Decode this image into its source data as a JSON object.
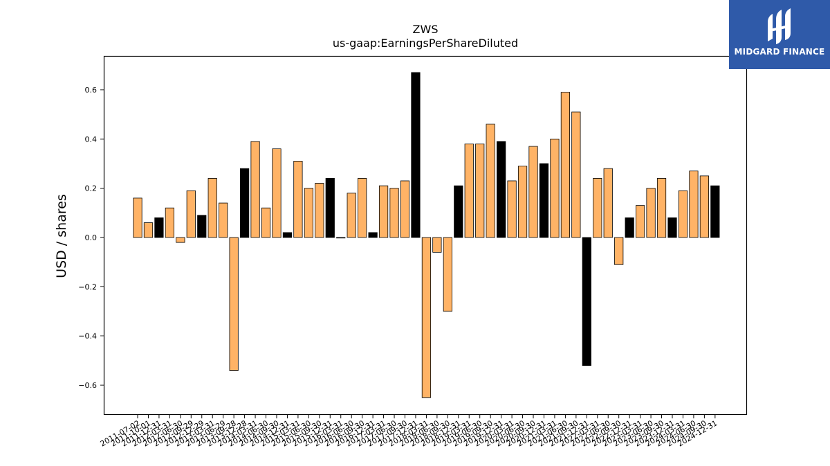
{
  "brand": {
    "name": "MIDGARD FINANCE",
    "logo_icon": "midgard-logo-icon",
    "color": "#2f5aa9"
  },
  "chart_data": {
    "type": "bar",
    "title": "ZWS",
    "subtitle": "us-gaap:EarningsPerShareDiluted",
    "xlabel": "",
    "ylabel": "USD / shares",
    "ylim": [
      -0.72,
      0.73
    ],
    "yticks": [
      -0.6,
      -0.4,
      -0.2,
      0.0,
      0.2,
      0.4,
      0.6
    ],
    "ytick_labels": [
      "−0.6",
      "−0.4",
      "−0.2",
      "0.0",
      "0.2",
      "0.4",
      "0.6"
    ],
    "grid": false,
    "colors": {
      "quarterly": "#ffb366",
      "annual": "#000000",
      "edge": "#000000"
    },
    "categories": [
      "2011-07-02",
      "2011-10-01",
      "2011-12-31",
      "2012-03-31",
      "2012-06-30",
      "2012-09-29",
      "2012-12-29",
      "2013-03-31",
      "2013-06-29",
      "2013-09-28",
      "2013-12-28",
      "2014-03-31",
      "2014-06-30",
      "2014-09-30",
      "2014-12-31",
      "2015-03-31",
      "2015-06-30",
      "2015-09-30",
      "2015-12-31",
      "2016-03-31",
      "2016-06-30",
      "2016-09-30",
      "2016-12-31",
      "2017-03-31",
      "2017-06-30",
      "2017-09-30",
      "2017-12-31",
      "2018-03-31",
      "2018-06-30",
      "2018-09-30",
      "2018-12-31",
      "2019-03-31",
      "2019-06-30",
      "2019-09-30",
      "2019-12-31",
      "2020-03-31",
      "2020-06-30",
      "2020-09-30",
      "2020-12-31",
      "2021-03-31",
      "2021-06-30",
      "2021-09-30",
      "2021-12-31",
      "2022-03-31",
      "2022-06-30",
      "2022-09-30",
      "2022-12-31",
      "2023-03-31",
      "2023-06-30",
      "2023-09-30",
      "2023-12-31",
      "2024-03-31",
      "2024-06-30",
      "2024-09-30",
      "2024-12-31"
    ],
    "tick_labels": [
      "2011-07-02",
      "2011-10-01",
      "2011-12-31",
      "2012-03-31",
      "2012-06-30",
      "2012-09-29",
      "2012-12-29",
      "2013-03-31",
      "2013-06-29",
      "2013-09-28",
      "2013-12-28",
      "2014-03-31",
      "2014-06-30",
      "2014-09-30",
      "2014-12-31",
      "2015-03-31",
      "2015-06-30",
      "2015-09-30",
      "2015-12-31",
      "2016-03-31",
      "2016-06-30",
      "2016-09-30",
      "2016-12-31",
      "2017-03-31",
      "2017-06-30",
      "2017-09-30",
      "2017-12-31",
      "2018-03-31",
      "2018-06-30",
      "2018-09-30",
      "2018-12-31",
      "2019-03-31",
      "2019-06-30",
      "2019-09-30",
      "2019-12-31",
      "2020-03-31",
      "2020-06-30",
      "2020-09-30",
      "2020-12-31",
      "2021-03-31",
      "2021-06-30",
      "2021-09-30",
      "2021-12-31",
      "2022-03-31",
      "2022-06-30",
      "2022-09-30",
      "2022-12-31",
      "2023-03-31",
      "2023-06-30",
      "2023-09-30",
      "2023-12-31",
      "2024-03-31",
      "2024-06-30",
      "2024-09-30",
      "2024-12-31"
    ],
    "values": [
      0.16,
      0.06,
      0.08,
      0.12,
      -0.02,
      0.19,
      0.09,
      0.24,
      0.14,
      -0.54,
      0.28,
      0.39,
      0.12,
      0.36,
      0.02,
      0.31,
      0.2,
      0.22,
      0.24,
      0.0,
      0.18,
      0.24,
      0.02,
      0.21,
      0.2,
      0.23,
      0.67,
      -0.65,
      -0.06,
      -0.3,
      0.21,
      0.38,
      0.38,
      0.46,
      0.39,
      0.23,
      0.29,
      0.37,
      0.3,
      0.4,
      0.59,
      0.51,
      -0.52,
      0.24,
      0.28,
      -0.11,
      0.08,
      0.13,
      0.2,
      0.24,
      0.08,
      0.19,
      0.27,
      0.25,
      0.21
    ],
    "annual": [
      false,
      false,
      true,
      false,
      false,
      false,
      true,
      false,
      false,
      false,
      true,
      false,
      false,
      false,
      true,
      false,
      false,
      false,
      true,
      false,
      false,
      false,
      true,
      false,
      false,
      false,
      true,
      false,
      false,
      false,
      true,
      false,
      false,
      false,
      true,
      false,
      false,
      false,
      true,
      false,
      false,
      false,
      true,
      false,
      false,
      false,
      true,
      false,
      false,
      false,
      true,
      false,
      false,
      false,
      true
    ]
  }
}
